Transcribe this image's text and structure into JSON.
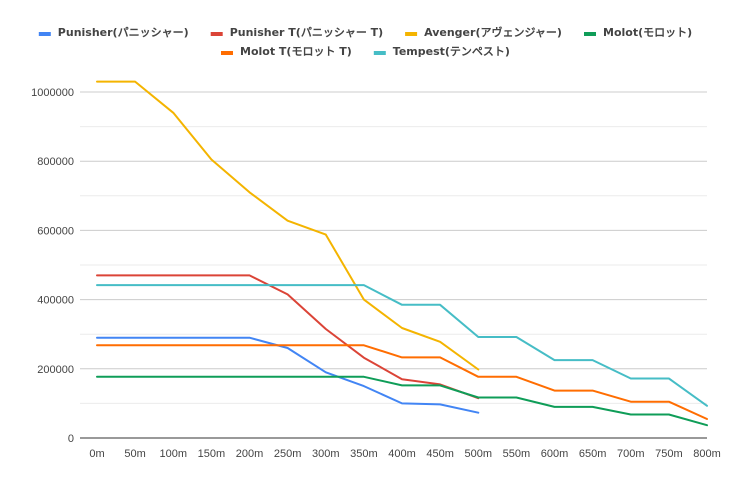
{
  "chart_data": {
    "type": "line",
    "title": "",
    "xlabel": "",
    "ylabel": "",
    "x": [
      "0m",
      "50m",
      "100m",
      "150m",
      "200m",
      "250m",
      "300m",
      "350m",
      "400m",
      "450m",
      "500m",
      "550m",
      "600m",
      "650m",
      "700m",
      "750m",
      "800m"
    ],
    "ylim": [
      0,
      1000000
    ],
    "yticks": [
      0,
      200000,
      400000,
      600000,
      800000,
      1000000
    ],
    "ytick_labels": [
      "0",
      "200000",
      "400000",
      "600000",
      "800000",
      "1000000"
    ],
    "grid": true,
    "legend_position": "top",
    "series": [
      {
        "name": "Punisher(パニッシャー)",
        "color": "#4285f4",
        "values": [
          290000,
          290000,
          290000,
          290000,
          290000,
          260000,
          190000,
          150000,
          100000,
          97000,
          73000,
          null,
          null,
          null,
          null,
          null,
          null
        ]
      },
      {
        "name": "Punisher T(パニッシャー T)",
        "color": "#db4437",
        "values": [
          470000,
          470000,
          470000,
          470000,
          470000,
          415000,
          315000,
          232000,
          170000,
          155000,
          115000,
          null,
          null,
          null,
          null,
          null,
          null
        ]
      },
      {
        "name": "Avenger(アヴェンジャー)",
        "color": "#f4b400",
        "values": [
          1030000,
          1030000,
          940000,
          805000,
          710000,
          628000,
          588000,
          400000,
          318000,
          278000,
          198000,
          null,
          null,
          null,
          null,
          null,
          null
        ]
      },
      {
        "name": "Molot(モロット)",
        "color": "#0f9d58",
        "values": [
          177000,
          177000,
          177000,
          177000,
          177000,
          177000,
          177000,
          177000,
          152000,
          152000,
          117000,
          117000,
          90000,
          90000,
          68000,
          68000,
          37000
        ]
      },
      {
        "name": "Molot T(モロット T)",
        "color": "#ff6d01",
        "values": [
          268000,
          268000,
          268000,
          268000,
          268000,
          268000,
          268000,
          268000,
          233000,
          233000,
          177000,
          177000,
          137000,
          137000,
          105000,
          105000,
          55000
        ]
      },
      {
        "name": "Tempest(テンペスト)",
        "color": "#46bdc6",
        "values": [
          442000,
          442000,
          442000,
          442000,
          442000,
          442000,
          442000,
          442000,
          385000,
          385000,
          292000,
          292000,
          225000,
          225000,
          172000,
          172000,
          93000
        ]
      }
    ]
  }
}
